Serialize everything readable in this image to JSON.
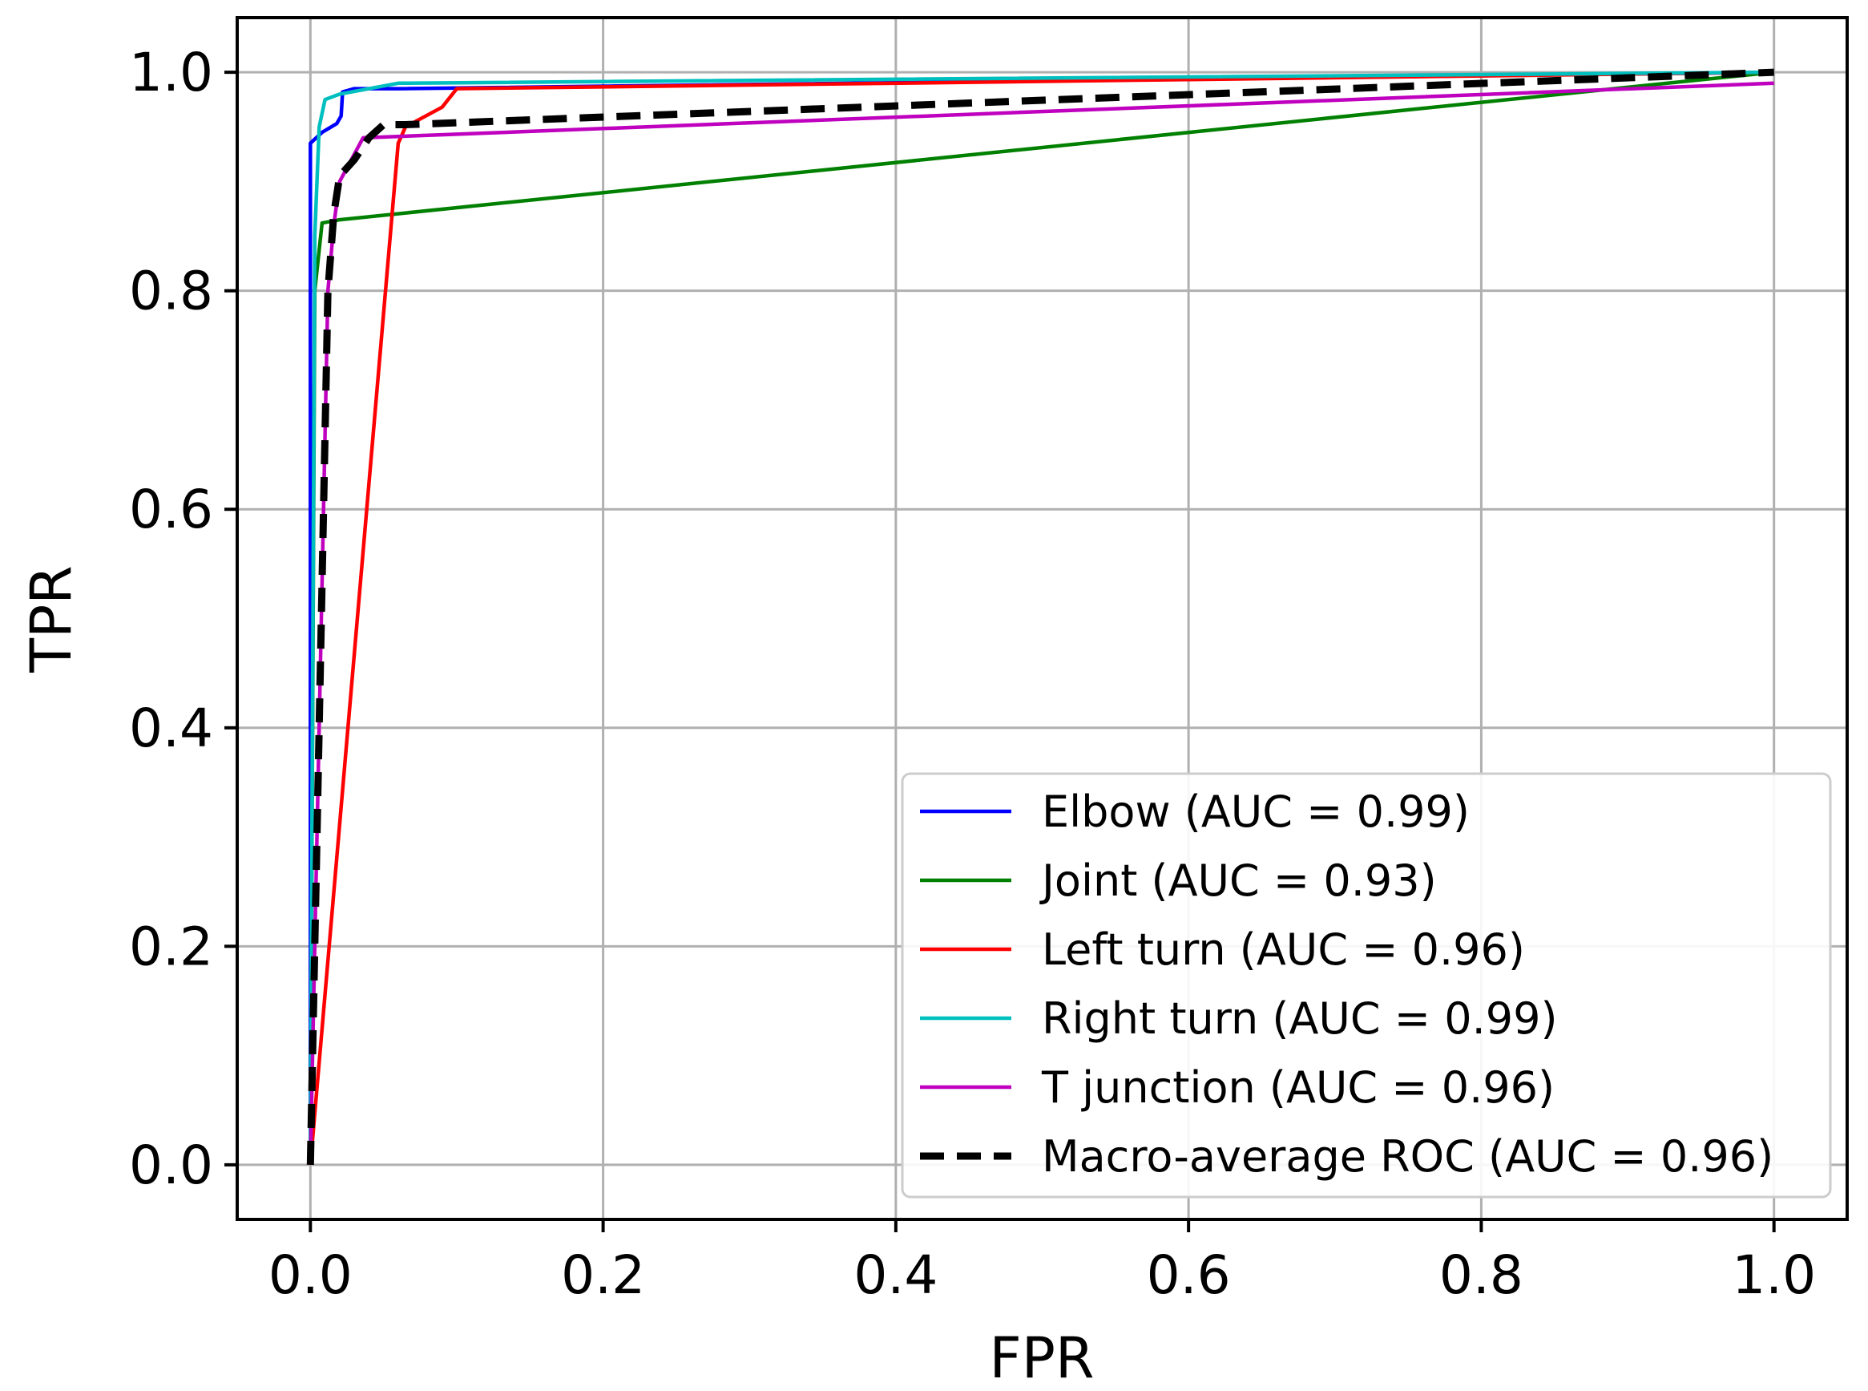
{
  "chart_data": {
    "type": "line",
    "xlabel": "FPR",
    "ylabel": "TPR",
    "xlim": [
      -0.05,
      1.05
    ],
    "ylim": [
      -0.05,
      1.05
    ],
    "xticks": [
      0.0,
      0.2,
      0.4,
      0.6,
      0.8,
      1.0
    ],
    "yticks": [
      0.0,
      0.2,
      0.4,
      0.6,
      0.8,
      1.0
    ],
    "xtick_labels": [
      "0.0",
      "0.2",
      "0.4",
      "0.6",
      "0.8",
      "1.0"
    ],
    "ytick_labels": [
      "0.0",
      "0.2",
      "0.4",
      "0.6",
      "0.8",
      "1.0"
    ],
    "grid": true,
    "legend_position": "lower-right",
    "series": [
      {
        "name": "Elbow (AUC = 0.99)",
        "color": "#0000ff",
        "dash": "solid",
        "x": [
          0.0,
          0.0,
          0.0,
          0.008,
          0.018,
          0.021,
          0.022,
          0.03,
          0.06,
          1.0
        ],
        "y": [
          0.0,
          0.8,
          0.935,
          0.945,
          0.953,
          0.96,
          0.982,
          0.985,
          0.985,
          1.0
        ]
      },
      {
        "name": "Joint (AUC = 0.93)",
        "color": "#008000",
        "dash": "solid",
        "x": [
          0.0,
          0.003,
          0.008,
          0.02,
          1.0
        ],
        "y": [
          0.0,
          0.8,
          0.862,
          0.865,
          1.0
        ]
      },
      {
        "name": "Left turn (AUC = 0.96)",
        "color": "#ff0000",
        "dash": "solid",
        "x": [
          0.0,
          0.06,
          0.065,
          0.09,
          0.1,
          1.0
        ],
        "y": [
          0.0,
          0.935,
          0.95,
          0.968,
          0.985,
          1.0
        ]
      },
      {
        "name": "Right turn (AUC = 0.99)",
        "color": "#00bfbf",
        "dash": "solid",
        "x": [
          0.0,
          0.003,
          0.006,
          0.01,
          0.02,
          0.06,
          1.0
        ],
        "y": [
          0.0,
          0.85,
          0.95,
          0.975,
          0.98,
          0.99,
          1.0
        ]
      },
      {
        "name": "T junction (AUC = 0.96)",
        "color": "#bf00bf",
        "dash": "solid",
        "x": [
          0.0,
          0.012,
          0.016,
          0.02,
          0.03,
          0.036,
          1.0
        ],
        "y": [
          0.0,
          0.8,
          0.86,
          0.9,
          0.925,
          0.94,
          0.99
        ]
      },
      {
        "name": "Macro-average ROC (AUC = 0.96)",
        "color": "#000000",
        "dash": "dashed",
        "x": [
          0.0,
          0.012,
          0.016,
          0.02,
          0.03,
          0.04,
          0.05,
          0.065,
          1.0
        ],
        "y": [
          0.0,
          0.8,
          0.87,
          0.905,
          0.92,
          0.94,
          0.952,
          0.952,
          1.0
        ]
      }
    ]
  }
}
